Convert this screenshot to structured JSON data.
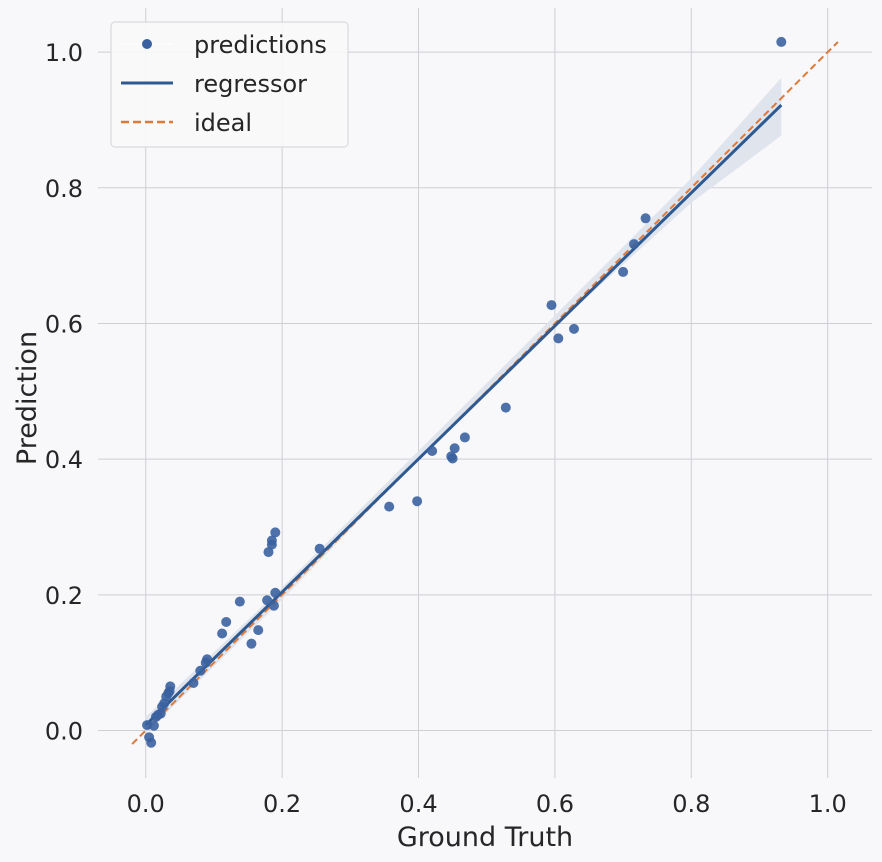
{
  "chart_data": {
    "type": "scatter",
    "xlabel": "Ground Truth",
    "ylabel": "Prediction",
    "xlim": [
      -0.07,
      1.065
    ],
    "ylim": [
      -0.07,
      1.065
    ],
    "xticks": [
      0.0,
      0.2,
      0.4,
      0.6,
      0.8,
      1.0
    ],
    "yticks": [
      0.0,
      0.2,
      0.4,
      0.6,
      0.8,
      1.0
    ],
    "tick_labels": [
      "0.0",
      "0.2",
      "0.4",
      "0.6",
      "0.8",
      "1.0"
    ],
    "grid": true,
    "legend_position": "top-left",
    "series": [
      {
        "name": "predictions",
        "kind": "points",
        "color": "#3b62a0",
        "points": [
          [
            0.002,
            0.008
          ],
          [
            0.005,
            -0.01
          ],
          [
            0.008,
            -0.018
          ],
          [
            0.012,
            0.007
          ],
          [
            0.015,
            0.02
          ],
          [
            0.018,
            0.023
          ],
          [
            0.022,
            0.025
          ],
          [
            0.024,
            0.035
          ],
          [
            0.027,
            0.04
          ],
          [
            0.03,
            0.05
          ],
          [
            0.033,
            0.055
          ],
          [
            0.035,
            0.058
          ],
          [
            0.036,
            0.065
          ],
          [
            0.07,
            0.07
          ],
          [
            0.08,
            0.088
          ],
          [
            0.088,
            0.1
          ],
          [
            0.09,
            0.105
          ],
          [
            0.112,
            0.143
          ],
          [
            0.118,
            0.16
          ],
          [
            0.138,
            0.19
          ],
          [
            0.155,
            0.128
          ],
          [
            0.165,
            0.148
          ],
          [
            0.178,
            0.192
          ],
          [
            0.18,
            0.263
          ],
          [
            0.185,
            0.274
          ],
          [
            0.185,
            0.28
          ],
          [
            0.188,
            0.184
          ],
          [
            0.19,
            0.203
          ],
          [
            0.19,
            0.292
          ],
          [
            0.255,
            0.268
          ],
          [
            0.357,
            0.33
          ],
          [
            0.398,
            0.338
          ],
          [
            0.42,
            0.412
          ],
          [
            0.448,
            0.404
          ],
          [
            0.45,
            0.401
          ],
          [
            0.453,
            0.416
          ],
          [
            0.468,
            0.432
          ],
          [
            0.528,
            0.476
          ],
          [
            0.595,
            0.627
          ],
          [
            0.605,
            0.578
          ],
          [
            0.628,
            0.592
          ],
          [
            0.7,
            0.676
          ],
          [
            0.716,
            0.717
          ],
          [
            0.733,
            0.755
          ],
          [
            0.932,
            1.015
          ]
        ]
      },
      {
        "name": "regressor",
        "kind": "line",
        "color": "#2e5a91",
        "x": [
          0.0,
          0.932
        ],
        "y": [
          0.008,
          0.922
        ],
        "ci_color": "#dde3ec",
        "ci_x": [
          0.0,
          0.2,
          0.4,
          0.6,
          0.8,
          0.932
        ],
        "ci_lower": [
          -0.004,
          0.193,
          0.4,
          0.596,
          0.778,
          0.877
        ],
        "ci_upper": [
          0.02,
          0.211,
          0.412,
          0.612,
          0.814,
          0.962
        ]
      },
      {
        "name": "ideal",
        "kind": "dashed-line",
        "color": "#dd7a3a",
        "x": [
          -0.02,
          1.015
        ],
        "y": [
          -0.02,
          1.015
        ]
      }
    ]
  }
}
